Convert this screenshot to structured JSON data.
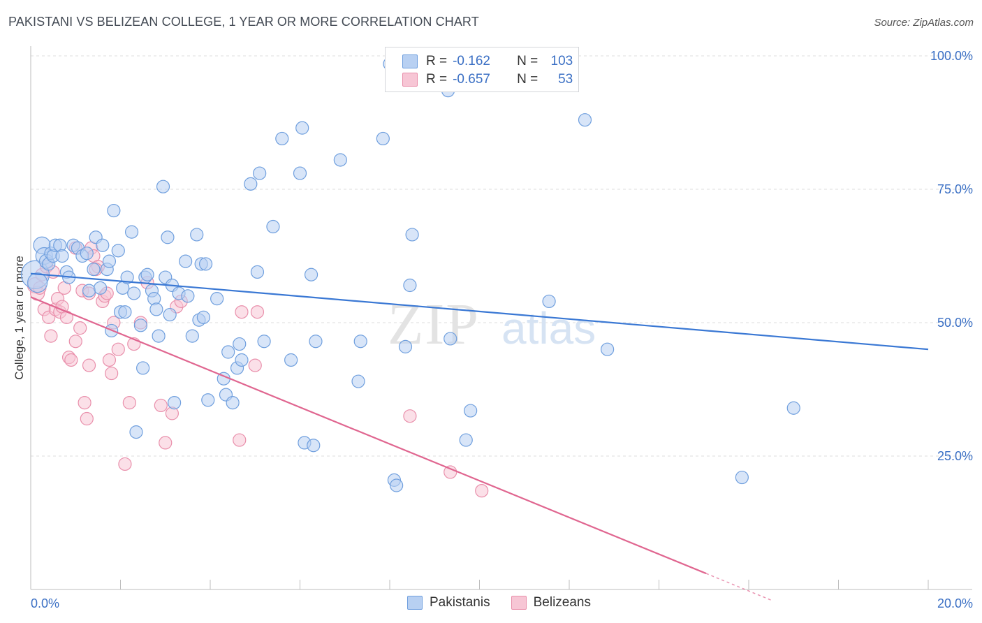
{
  "header": {
    "title": "PAKISTANI VS BELIZEAN COLLEGE, 1 YEAR OR MORE CORRELATION CHART",
    "source": "Source: ZipAtlas.com"
  },
  "watermark": {
    "zip": "ZIP",
    "atlas": "atlas"
  },
  "legend": {
    "rows": [
      {
        "r_label": "R =",
        "r_value": "-0.162",
        "n_label": "N =",
        "n_value": "103",
        "color": "#6f9fde",
        "fill": "#b8d0f2"
      },
      {
        "r_label": "R =",
        "r_value": "-0.657",
        "n_label": "N =",
        "n_value": "53",
        "color": "#e98fab",
        "fill": "#f7c6d5"
      }
    ]
  },
  "bottom_legend": [
    {
      "label": "Pakistanis",
      "color": "#6f9fde",
      "fill": "#b8d0f2"
    },
    {
      "label": "Belizeans",
      "color": "#e98fab",
      "fill": "#f7c6d5"
    }
  ],
  "chart_data": {
    "type": "scatter",
    "title": "PAKISTANI VS BELIZEAN COLLEGE, 1 YEAR OR MORE CORRELATION CHART",
    "xlabel": "",
    "ylabel": "College, 1 year or more",
    "xlim": [
      0,
      20
    ],
    "ylim": [
      0,
      100
    ],
    "x_tick_labels": [
      "0.0%",
      "20.0%"
    ],
    "y_tick_values": [
      25,
      50,
      75,
      100
    ],
    "y_tick_labels": [
      "25.0%",
      "50.0%",
      "75.0%",
      "100.0%"
    ],
    "grid": true,
    "series": [
      {
        "name": "Pakistanis",
        "color": "#3a78d4",
        "fill": "#b8d0f2",
        "stroke": "#6f9fde",
        "trend": {
          "x": [
            0,
            20
          ],
          "y": [
            59.2,
            45.0
          ]
        },
        "points": [
          {
            "x": 0.1,
            "y": 59.0,
            "s": 20
          },
          {
            "x": 0.15,
            "y": 57.5,
            "s": 14
          },
          {
            "x": 0.25,
            "y": 64.5,
            "s": 12
          },
          {
            "x": 0.3,
            "y": 62.5,
            "s": 12
          },
          {
            "x": 0.35,
            "y": 61.5,
            "s": 10
          },
          {
            "x": 0.4,
            "y": 61.0,
            "s": 9
          },
          {
            "x": 0.45,
            "y": 63.0,
            "s": 9
          },
          {
            "x": 0.5,
            "y": 62.5,
            "s": 9
          },
          {
            "x": 0.55,
            "y": 64.5,
            "s": 9
          },
          {
            "x": 0.65,
            "y": 64.5,
            "s": 9
          },
          {
            "x": 0.7,
            "y": 62.5,
            "s": 9
          },
          {
            "x": 0.8,
            "y": 59.5,
            "s": 9
          },
          {
            "x": 0.85,
            "y": 58.5,
            "s": 9
          },
          {
            "x": 0.95,
            "y": 64.5,
            "s": 9
          },
          {
            "x": 1.05,
            "y": 64.0,
            "s": 9
          },
          {
            "x": 1.15,
            "y": 62.5,
            "s": 9
          },
          {
            "x": 1.25,
            "y": 63.0,
            "s": 9
          },
          {
            "x": 1.3,
            "y": 56.0,
            "s": 9
          },
          {
            "x": 1.4,
            "y": 60.0,
            "s": 9
          },
          {
            "x": 1.45,
            "y": 66.0,
            "s": 9
          },
          {
            "x": 1.55,
            "y": 56.5,
            "s": 9
          },
          {
            "x": 1.6,
            "y": 64.5,
            "s": 9
          },
          {
            "x": 1.7,
            "y": 60.0,
            "s": 9
          },
          {
            "x": 1.75,
            "y": 61.5,
            "s": 9
          },
          {
            "x": 1.8,
            "y": 48.5,
            "s": 9
          },
          {
            "x": 1.85,
            "y": 71.0,
            "s": 9
          },
          {
            "x": 1.95,
            "y": 63.5,
            "s": 9
          },
          {
            "x": 2.0,
            "y": 52.0,
            "s": 9
          },
          {
            "x": 2.05,
            "y": 56.5,
            "s": 9
          },
          {
            "x": 2.1,
            "y": 52.0,
            "s": 9
          },
          {
            "x": 2.15,
            "y": 58.5,
            "s": 9
          },
          {
            "x": 2.25,
            "y": 67.0,
            "s": 9
          },
          {
            "x": 2.3,
            "y": 55.5,
            "s": 9
          },
          {
            "x": 2.35,
            "y": 29.5,
            "s": 9
          },
          {
            "x": 2.45,
            "y": 49.5,
            "s": 9
          },
          {
            "x": 2.5,
            "y": 41.5,
            "s": 9
          },
          {
            "x": 2.55,
            "y": 58.5,
            "s": 9
          },
          {
            "x": 2.6,
            "y": 59.0,
            "s": 9
          },
          {
            "x": 2.7,
            "y": 56.0,
            "s": 9
          },
          {
            "x": 2.75,
            "y": 54.5,
            "s": 9
          },
          {
            "x": 2.8,
            "y": 52.5,
            "s": 9
          },
          {
            "x": 2.85,
            "y": 47.5,
            "s": 9
          },
          {
            "x": 2.95,
            "y": 75.5,
            "s": 9
          },
          {
            "x": 3.0,
            "y": 58.5,
            "s": 9
          },
          {
            "x": 3.05,
            "y": 66.0,
            "s": 9
          },
          {
            "x": 3.1,
            "y": 51.5,
            "s": 9
          },
          {
            "x": 3.15,
            "y": 57.0,
            "s": 9
          },
          {
            "x": 3.2,
            "y": 35.0,
            "s": 9
          },
          {
            "x": 3.3,
            "y": 55.5,
            "s": 9
          },
          {
            "x": 3.45,
            "y": 61.5,
            "s": 9
          },
          {
            "x": 3.5,
            "y": 55.0,
            "s": 9
          },
          {
            "x": 3.6,
            "y": 47.5,
            "s": 9
          },
          {
            "x": 3.7,
            "y": 66.5,
            "s": 9
          },
          {
            "x": 3.75,
            "y": 50.5,
            "s": 9
          },
          {
            "x": 3.8,
            "y": 61.0,
            "s": 9
          },
          {
            "x": 3.85,
            "y": 51.0,
            "s": 9
          },
          {
            "x": 3.9,
            "y": 61.0,
            "s": 9
          },
          {
            "x": 3.95,
            "y": 35.5,
            "s": 9
          },
          {
            "x": 4.15,
            "y": 54.5,
            "s": 9
          },
          {
            "x": 4.3,
            "y": 39.5,
            "s": 9
          },
          {
            "x": 4.35,
            "y": 36.5,
            "s": 9
          },
          {
            "x": 4.4,
            "y": 44.5,
            "s": 9
          },
          {
            "x": 4.5,
            "y": 35.0,
            "s": 9
          },
          {
            "x": 4.6,
            "y": 41.5,
            "s": 9
          },
          {
            "x": 4.65,
            "y": 46.0,
            "s": 9
          },
          {
            "x": 4.7,
            "y": 43.0,
            "s": 9
          },
          {
            "x": 4.9,
            "y": 76.0,
            "s": 9
          },
          {
            "x": 5.05,
            "y": 59.5,
            "s": 9
          },
          {
            "x": 5.1,
            "y": 78.0,
            "s": 9
          },
          {
            "x": 5.2,
            "y": 46.5,
            "s": 9
          },
          {
            "x": 5.4,
            "y": 68.0,
            "s": 9
          },
          {
            "x": 5.6,
            "y": 84.5,
            "s": 9
          },
          {
            "x": 5.8,
            "y": 43.0,
            "s": 9
          },
          {
            "x": 6.0,
            "y": 78.0,
            "s": 9
          },
          {
            "x": 6.05,
            "y": 86.5,
            "s": 9
          },
          {
            "x": 6.1,
            "y": 27.5,
            "s": 9
          },
          {
            "x": 6.25,
            "y": 59.0,
            "s": 9
          },
          {
            "x": 6.3,
            "y": 27.0,
            "s": 9
          },
          {
            "x": 6.35,
            "y": 46.5,
            "s": 9
          },
          {
            "x": 6.9,
            "y": 80.5,
            "s": 9
          },
          {
            "x": 7.3,
            "y": 39.0,
            "s": 9
          },
          {
            "x": 7.35,
            "y": 46.5,
            "s": 9
          },
          {
            "x": 7.85,
            "y": 84.5,
            "s": 9
          },
          {
            "x": 8.0,
            "y": 98.5,
            "s": 9
          },
          {
            "x": 8.1,
            "y": 20.5,
            "s": 9
          },
          {
            "x": 8.15,
            "y": 19.5,
            "s": 9
          },
          {
            "x": 8.35,
            "y": 45.5,
            "s": 9
          },
          {
            "x": 8.45,
            "y": 57.0,
            "s": 9
          },
          {
            "x": 8.5,
            "y": 66.5,
            "s": 9
          },
          {
            "x": 9.3,
            "y": 93.5,
            "s": 9
          },
          {
            "x": 9.35,
            "y": 47.0,
            "s": 9
          },
          {
            "x": 9.7,
            "y": 28.0,
            "s": 9
          },
          {
            "x": 9.8,
            "y": 33.5,
            "s": 9
          },
          {
            "x": 11.5,
            "y": 98.0,
            "s": 9
          },
          {
            "x": 11.55,
            "y": 54.0,
            "s": 9
          },
          {
            "x": 12.35,
            "y": 88.0,
            "s": 9
          },
          {
            "x": 12.85,
            "y": 45.0,
            "s": 9
          },
          {
            "x": 15.85,
            "y": 21.0,
            "s": 9
          },
          {
            "x": 17.0,
            "y": 34.0,
            "s": 9
          }
        ]
      },
      {
        "name": "Belizeans",
        "color": "#e06690",
        "fill": "#f7c6d5",
        "stroke": "#e98fab",
        "trend": {
          "x": [
            0,
            15.05
          ],
          "y": [
            54.8,
            3.0
          ]
        },
        "trend_dashed": {
          "x": [
            15.05,
            16.5
          ],
          "y": [
            3.0,
            -2.0
          ]
        },
        "points": [
          {
            "x": 0.1,
            "y": 57.0,
            "s": 11
          },
          {
            "x": 0.15,
            "y": 55.5,
            "s": 10
          },
          {
            "x": 0.2,
            "y": 56.5,
            "s": 9
          },
          {
            "x": 0.25,
            "y": 59.0,
            "s": 9
          },
          {
            "x": 0.3,
            "y": 52.5,
            "s": 9
          },
          {
            "x": 0.35,
            "y": 60.5,
            "s": 9
          },
          {
            "x": 0.4,
            "y": 51.0,
            "s": 9
          },
          {
            "x": 0.45,
            "y": 47.5,
            "s": 9
          },
          {
            "x": 0.5,
            "y": 59.5,
            "s": 9
          },
          {
            "x": 0.55,
            "y": 52.5,
            "s": 9
          },
          {
            "x": 0.6,
            "y": 54.5,
            "s": 9
          },
          {
            "x": 0.65,
            "y": 52.0,
            "s": 9
          },
          {
            "x": 0.7,
            "y": 53.0,
            "s": 9
          },
          {
            "x": 0.75,
            "y": 56.5,
            "s": 9
          },
          {
            "x": 0.8,
            "y": 51.0,
            "s": 9
          },
          {
            "x": 0.85,
            "y": 43.5,
            "s": 9
          },
          {
            "x": 0.9,
            "y": 43.0,
            "s": 9
          },
          {
            "x": 1.0,
            "y": 64.0,
            "s": 9
          },
          {
            "x": 1.0,
            "y": 46.5,
            "s": 9
          },
          {
            "x": 1.1,
            "y": 49.0,
            "s": 9
          },
          {
            "x": 1.15,
            "y": 56.0,
            "s": 9
          },
          {
            "x": 1.2,
            "y": 35.0,
            "s": 9
          },
          {
            "x": 1.25,
            "y": 32.0,
            "s": 9
          },
          {
            "x": 1.3,
            "y": 42.0,
            "s": 9
          },
          {
            "x": 1.3,
            "y": 55.5,
            "s": 9
          },
          {
            "x": 1.35,
            "y": 64.0,
            "s": 9
          },
          {
            "x": 1.4,
            "y": 62.5,
            "s": 9
          },
          {
            "x": 1.5,
            "y": 60.5,
            "s": 9
          },
          {
            "x": 1.6,
            "y": 54.0,
            "s": 9
          },
          {
            "x": 1.65,
            "y": 55.0,
            "s": 9
          },
          {
            "x": 1.7,
            "y": 55.5,
            "s": 9
          },
          {
            "x": 1.75,
            "y": 43.0,
            "s": 9
          },
          {
            "x": 1.8,
            "y": 40.5,
            "s": 9
          },
          {
            "x": 1.85,
            "y": 50.0,
            "s": 9
          },
          {
            "x": 1.95,
            "y": 45.0,
            "s": 9
          },
          {
            "x": 2.1,
            "y": 23.5,
            "s": 9
          },
          {
            "x": 2.2,
            "y": 35.0,
            "s": 9
          },
          {
            "x": 2.3,
            "y": 46.0,
            "s": 9
          },
          {
            "x": 2.45,
            "y": 50.0,
            "s": 9
          },
          {
            "x": 2.6,
            "y": 57.5,
            "s": 9
          },
          {
            "x": 2.9,
            "y": 34.5,
            "s": 9
          },
          {
            "x": 3.0,
            "y": 27.5,
            "s": 9
          },
          {
            "x": 3.15,
            "y": 33.0,
            "s": 9
          },
          {
            "x": 3.25,
            "y": 53.0,
            "s": 9
          },
          {
            "x": 3.35,
            "y": 54.0,
            "s": 9
          },
          {
            "x": 4.65,
            "y": 28.0,
            "s": 9
          },
          {
            "x": 4.7,
            "y": 52.0,
            "s": 9
          },
          {
            "x": 5.0,
            "y": 42.0,
            "s": 9
          },
          {
            "x": 5.05,
            "y": 52.0,
            "s": 9
          },
          {
            "x": 8.45,
            "y": 32.5,
            "s": 9
          },
          {
            "x": 9.35,
            "y": 22.0,
            "s": 9
          },
          {
            "x": 10.05,
            "y": 18.5,
            "s": 9
          },
          {
            "x": 1.45,
            "y": 60.0,
            "s": 9
          }
        ]
      }
    ]
  }
}
